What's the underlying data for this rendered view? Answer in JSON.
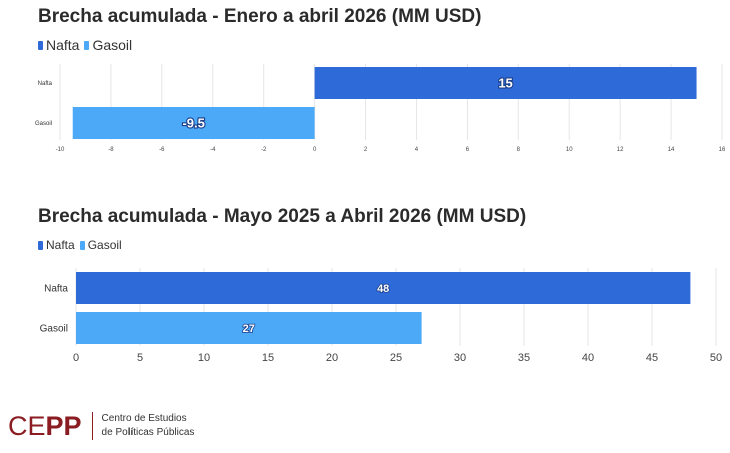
{
  "colors": {
    "nafta": "#2f6ad9",
    "gasoil": "#4ba9f7"
  },
  "chart_data": [
    {
      "type": "bar",
      "orientation": "horizontal",
      "title": "Brecha acumulada - Enero a abril 2026 (MM USD)",
      "categories": [
        "Nafta",
        "Gasoil"
      ],
      "series": [
        {
          "name": "Nafta",
          "values": [
            15,
            null
          ]
        },
        {
          "name": "Gasoil",
          "values": [
            null,
            -9.5
          ]
        }
      ],
      "data_labels": [
        "15",
        "-9.5"
      ],
      "xlim": [
        -10,
        16
      ],
      "xticks": [
        "-10",
        "-8",
        "-6",
        "-4",
        "-2",
        "0",
        "2",
        "4",
        "6",
        "8",
        "10",
        "12",
        "14",
        "16"
      ],
      "grid": true,
      "legend": "top-left"
    },
    {
      "type": "bar",
      "orientation": "horizontal",
      "title": "Brecha acumulada - Mayo 2025 a Abril 2026 (MM USD)",
      "categories": [
        "Nafta",
        "Gasoil"
      ],
      "series": [
        {
          "name": "Nafta",
          "values": [
            48,
            null
          ]
        },
        {
          "name": "Gasoil",
          "values": [
            null,
            27
          ]
        }
      ],
      "data_labels": [
        "48",
        "27"
      ],
      "xlim": [
        0,
        50
      ],
      "xticks": [
        "0",
        "5",
        "10",
        "15",
        "20",
        "25",
        "30",
        "35",
        "40",
        "45",
        "50"
      ],
      "grid": true,
      "legend": "top-left"
    }
  ],
  "footer": {
    "logo_part1": "CE",
    "logo_part2": "PP",
    "org_line1": "Centro de Estudios",
    "org_line2_pre": "de Po",
    "org_line2_bold": "lí",
    "org_line2_post": "ticas Públicas"
  }
}
